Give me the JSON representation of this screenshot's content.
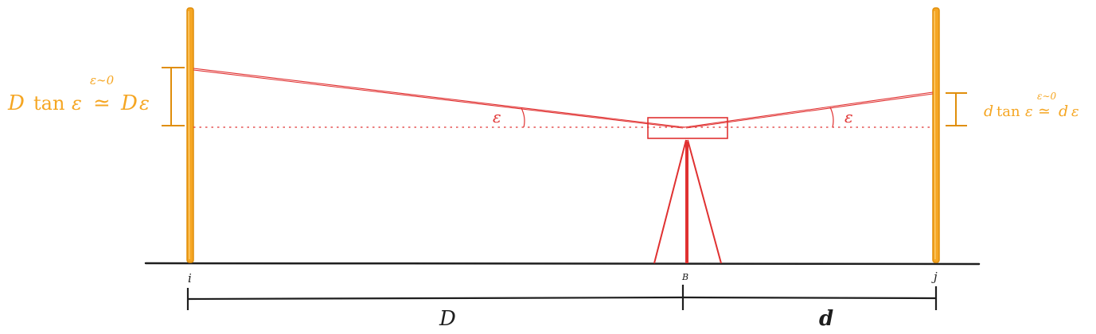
{
  "labels": {
    "left_error": {
      "var": "D",
      "func": "tan",
      "eps": "ε",
      "sup": "ε∼0",
      "approx": "≃",
      "result_var": "D",
      "result_eps": "ε"
    },
    "right_error": {
      "var": "d",
      "func": "tan",
      "eps": "ε",
      "sup": "ε∼0",
      "approx": "≃",
      "result_var": "d",
      "result_eps": "ε"
    },
    "left_angle": "ε",
    "right_angle": "ε",
    "point_i": "i",
    "point_B": "B",
    "point_j": "j",
    "distance_D": "D",
    "distance_d": "d"
  },
  "colors": {
    "staff": "#f5a623",
    "staff_edge": "#e08e0b",
    "instrument": "#e03131",
    "ground": "#1e1e1e"
  }
}
